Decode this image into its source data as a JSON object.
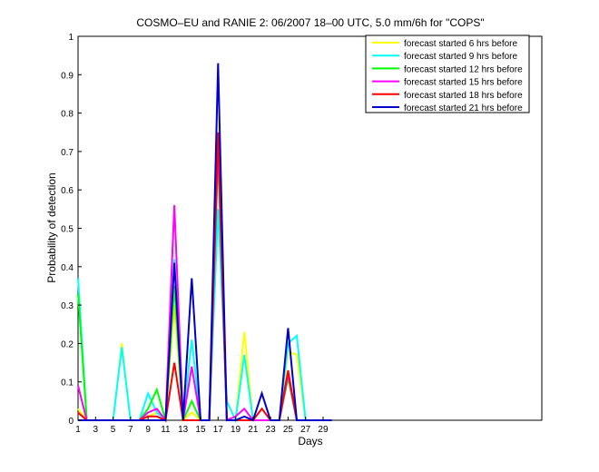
{
  "chart_data": {
    "type": "line",
    "title": "COSMO–EU and RANIE 2: 06/2007 18–00 UTC, 5.0 mm/6h for \"COPS\"",
    "xlabel": "Days",
    "ylabel": "Probability of detection",
    "xlim": [
      1,
      54
    ],
    "ylim": [
      0,
      1
    ],
    "xticks": [
      1,
      3,
      5,
      7,
      9,
      11,
      13,
      15,
      17,
      19,
      21,
      23,
      25,
      27,
      29
    ],
    "yticks": [
      0,
      0.1,
      0.2,
      0.3,
      0.4,
      0.5,
      0.6,
      0.7,
      0.8,
      0.9,
      1
    ],
    "ytick_labels": [
      "0",
      "0.1",
      "0.2",
      "0.3",
      "0.4",
      "0.5",
      "0.6",
      "0.7",
      "0.8",
      "0.9",
      "1"
    ],
    "grid": false,
    "legend_position": "top-right",
    "series": [
      {
        "name": "forecast started 6 hrs before",
        "color": "#ffff00",
        "points": [
          [
            1,
            0.03
          ],
          [
            2,
            0
          ],
          [
            3,
            0
          ],
          [
            4,
            0
          ],
          [
            5,
            0
          ],
          [
            6,
            0.2
          ],
          [
            7,
            0
          ],
          [
            8,
            0
          ],
          [
            9,
            0.01
          ],
          [
            10,
            0.02
          ],
          [
            11,
            0
          ],
          [
            12,
            0.3
          ],
          [
            13,
            0
          ],
          [
            14,
            0.02
          ],
          [
            15,
            0
          ],
          [
            16,
            0
          ],
          [
            17,
            0.7
          ],
          [
            18,
            0.05
          ],
          [
            19,
            0
          ],
          [
            20,
            0.23
          ],
          [
            21,
            0
          ],
          [
            22,
            0
          ],
          [
            23,
            0
          ],
          [
            24,
            0
          ],
          [
            25,
            0.18
          ],
          [
            26,
            0.17
          ],
          [
            27,
            0
          ],
          [
            28,
            0
          ],
          [
            29,
            0
          ],
          [
            30,
            0
          ]
        ]
      },
      {
        "name": "forecast started 9 hrs before",
        "color": "#00ffff",
        "points": [
          [
            1,
            0.37
          ],
          [
            2,
            0
          ],
          [
            3,
            0
          ],
          [
            4,
            0
          ],
          [
            5,
            0
          ],
          [
            6,
            0.19
          ],
          [
            7,
            0
          ],
          [
            8,
            0
          ],
          [
            9,
            0.07
          ],
          [
            10,
            0.02
          ],
          [
            11,
            0
          ],
          [
            12,
            0.42
          ],
          [
            13,
            0
          ],
          [
            14,
            0.21
          ],
          [
            15,
            0
          ],
          [
            16,
            0
          ],
          [
            17,
            0.55
          ],
          [
            18,
            0.05
          ],
          [
            19,
            0
          ],
          [
            20,
            0.17
          ],
          [
            21,
            0
          ],
          [
            22,
            0
          ],
          [
            23,
            0
          ],
          [
            24,
            0
          ],
          [
            25,
            0.2
          ],
          [
            26,
            0.22
          ],
          [
            27,
            0
          ],
          [
            28,
            0
          ],
          [
            29,
            0
          ],
          [
            30,
            0
          ]
        ]
      },
      {
        "name": "forecast started 12 hrs before",
        "color": "#00ff00",
        "points": [
          [
            1,
            0.33
          ],
          [
            2,
            0
          ],
          [
            3,
            0
          ],
          [
            4,
            0
          ],
          [
            5,
            0
          ],
          [
            6,
            0
          ],
          [
            7,
            0
          ],
          [
            8,
            0
          ],
          [
            9,
            0.03
          ],
          [
            10,
            0.08
          ],
          [
            11,
            0
          ],
          [
            12,
            0.35
          ],
          [
            13,
            0
          ],
          [
            14,
            0.05
          ],
          [
            15,
            0
          ],
          [
            16,
            0
          ],
          [
            17,
            0.69
          ],
          [
            18,
            0
          ],
          [
            19,
            0
          ],
          [
            20,
            0
          ],
          [
            21,
            0
          ],
          [
            22,
            0
          ],
          [
            23,
            0
          ],
          [
            24,
            0
          ],
          [
            25,
            0.11
          ],
          [
            26,
            0
          ],
          [
            27,
            0
          ],
          [
            28,
            0
          ],
          [
            29,
            0
          ],
          [
            30,
            0
          ]
        ]
      },
      {
        "name": "forecast started 15 hrs before",
        "color": "#ff00ff",
        "points": [
          [
            1,
            0.09
          ],
          [
            2,
            0
          ],
          [
            3,
            0
          ],
          [
            4,
            0
          ],
          [
            5,
            0
          ],
          [
            6,
            0
          ],
          [
            7,
            0
          ],
          [
            8,
            0
          ],
          [
            9,
            0.02
          ],
          [
            10,
            0.03
          ],
          [
            11,
            0
          ],
          [
            12,
            0.56
          ],
          [
            13,
            0
          ],
          [
            14,
            0.14
          ],
          [
            15,
            0
          ],
          [
            16,
            0
          ],
          [
            17,
            0.72
          ],
          [
            18,
            0
          ],
          [
            19,
            0.01
          ],
          [
            20,
            0.03
          ],
          [
            21,
            0
          ],
          [
            22,
            0
          ],
          [
            23,
            0
          ],
          [
            24,
            0
          ],
          [
            25,
            0.12
          ],
          [
            26,
            0
          ],
          [
            27,
            0
          ],
          [
            28,
            0
          ],
          [
            29,
            0
          ],
          [
            30,
            0
          ]
        ]
      },
      {
        "name": "forecast started 18 hrs before",
        "color": "#ff0000",
        "points": [
          [
            1,
            0.02
          ],
          [
            2,
            0
          ],
          [
            3,
            0
          ],
          [
            4,
            0
          ],
          [
            5,
            0
          ],
          [
            6,
            0
          ],
          [
            7,
            0
          ],
          [
            8,
            0
          ],
          [
            9,
            0.01
          ],
          [
            10,
            0.01
          ],
          [
            11,
            0
          ],
          [
            12,
            0.15
          ],
          [
            13,
            0
          ],
          [
            14,
            0
          ],
          [
            15,
            0
          ],
          [
            16,
            0
          ],
          [
            17,
            0.75
          ],
          [
            18,
            0
          ],
          [
            19,
            0
          ],
          [
            20,
            0
          ],
          [
            21,
            0
          ],
          [
            22,
            0.03
          ],
          [
            23,
            0
          ],
          [
            24,
            0
          ],
          [
            25,
            0.13
          ],
          [
            26,
            0
          ],
          [
            27,
            0
          ],
          [
            28,
            0
          ],
          [
            29,
            0
          ],
          [
            30,
            0
          ]
        ]
      },
      {
        "name": "forecast started 21 hrs before",
        "color": "#0000cc",
        "points": [
          [
            1,
            0
          ],
          [
            2,
            0
          ],
          [
            3,
            0
          ],
          [
            4,
            0
          ],
          [
            5,
            0
          ],
          [
            6,
            0
          ],
          [
            7,
            0
          ],
          [
            8,
            0
          ],
          [
            9,
            0
          ],
          [
            10,
            0
          ],
          [
            11,
            0
          ],
          [
            12,
            0.41
          ],
          [
            13,
            0
          ],
          [
            14,
            0.37
          ],
          [
            15,
            0
          ],
          [
            16,
            0
          ],
          [
            17,
            0.93
          ],
          [
            18,
            0
          ],
          [
            19,
            0
          ],
          [
            20,
            0.01
          ],
          [
            21,
            0
          ],
          [
            22,
            0.07
          ],
          [
            23,
            0
          ],
          [
            24,
            0
          ],
          [
            25,
            0.24
          ],
          [
            26,
            0
          ],
          [
            27,
            0
          ],
          [
            28,
            0
          ],
          [
            29,
            0
          ],
          [
            30,
            0
          ]
        ]
      }
    ]
  }
}
